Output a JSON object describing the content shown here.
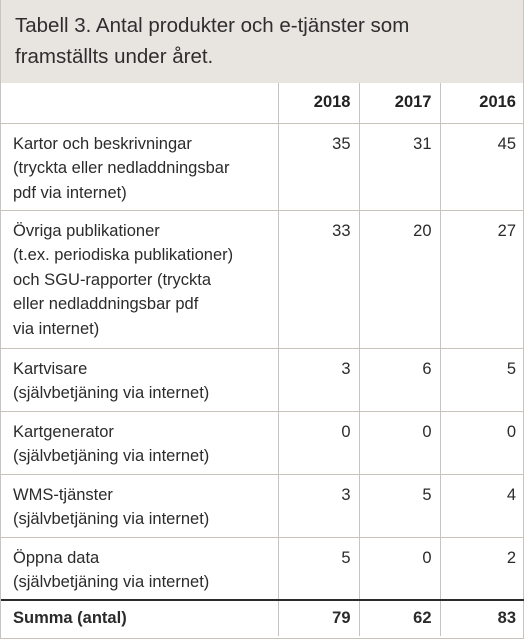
{
  "title": {
    "line1": "Tabell 3. Antal produkter och e-tjänster som",
    "line2": "framställts under året."
  },
  "columns": [
    "2018",
    "2017",
    "2016"
  ],
  "rows": [
    {
      "label_lines": [
        "Kartor och beskrivningar",
        "(tryckta eller nedladdningsbar",
        "pdf via internet)"
      ],
      "values": [
        "35",
        "31",
        "45"
      ]
    },
    {
      "label_lines": [
        "Övriga publikationer",
        "(t.ex. periodiska publikationer)",
        "och SGU-rapporter (tryckta",
        "eller nedladdningsbar pdf",
        "via internet)"
      ],
      "values": [
        "33",
        "20",
        "27"
      ]
    },
    {
      "label_lines": [
        "Kartvisare",
        "(självbetjäning via internet)"
      ],
      "values": [
        "3",
        "6",
        "5"
      ]
    },
    {
      "label_lines": [
        "Kartgenerator",
        "(självbetjäning via internet)"
      ],
      "values": [
        "0",
        "0",
        "0"
      ]
    },
    {
      "label_lines": [
        "WMS-tjänster",
        "(självbetjäning via internet)"
      ],
      "values": [
        "3",
        "5",
        "4"
      ]
    },
    {
      "label_lines": [
        "Öppna data",
        "(självbetjäning via internet)"
      ],
      "values": [
        "5",
        "0",
        "2"
      ]
    }
  ],
  "total": {
    "label": "Summa (antal)",
    "values": [
      "79",
      "62",
      "83"
    ]
  }
}
